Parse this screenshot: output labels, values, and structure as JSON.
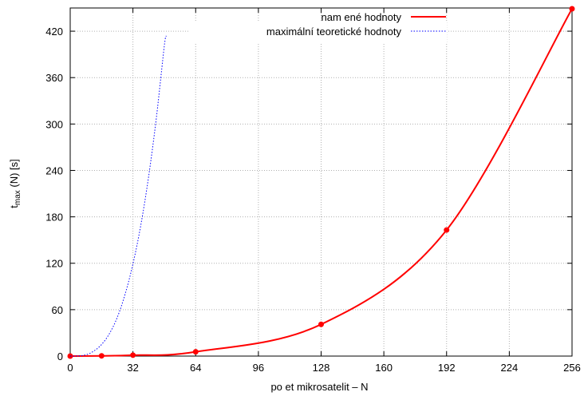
{
  "chart_data": {
    "type": "line",
    "title": "",
    "xlabel": "po   et mikrosatelit   – N",
    "ylabel": {
      "main": "t",
      "sub": "max",
      "rest": " (N) [s]"
    },
    "xlim": [
      0,
      256
    ],
    "ylim": [
      0,
      450
    ],
    "grid": true,
    "legend_position": "top-right",
    "x_ticks": [
      0,
      32,
      64,
      96,
      128,
      160,
      192,
      224,
      256
    ],
    "y_ticks": [
      0,
      60,
      120,
      180,
      240,
      300,
      360,
      420
    ],
    "series": [
      {
        "name": "nam   ené  hodnoty",
        "color": "#ff0000",
        "style": "solid",
        "markers": true,
        "points": [
          {
            "x": 0,
            "y": 0
          },
          {
            "x": 16,
            "y": 0.3
          },
          {
            "x": 32,
            "y": 1.2
          },
          {
            "x": 64,
            "y": 5.5
          },
          {
            "x": 128,
            "y": 41
          },
          {
            "x": 192,
            "y": 163
          },
          {
            "x": 256,
            "y": 449
          }
        ]
      },
      {
        "name": "maximální teoretické hodnoty",
        "color": "#0000ff",
        "style": "dotted",
        "markers": false,
        "points": [
          {
            "x": 0,
            "y": 0
          },
          {
            "x": 4,
            "y": 0.2
          },
          {
            "x": 8,
            "y": 1.6
          },
          {
            "x": 12,
            "y": 6.4
          },
          {
            "x": 16,
            "y": 15
          },
          {
            "x": 20,
            "y": 29
          },
          {
            "x": 24,
            "y": 50
          },
          {
            "x": 28,
            "y": 80
          },
          {
            "x": 32,
            "y": 119
          },
          {
            "x": 36,
            "y": 169
          },
          {
            "x": 40,
            "y": 232
          },
          {
            "x": 44,
            "y": 309
          },
          {
            "x": 48,
            "y": 401
          },
          {
            "x": 49,
            "y": 414
          }
        ]
      }
    ]
  }
}
